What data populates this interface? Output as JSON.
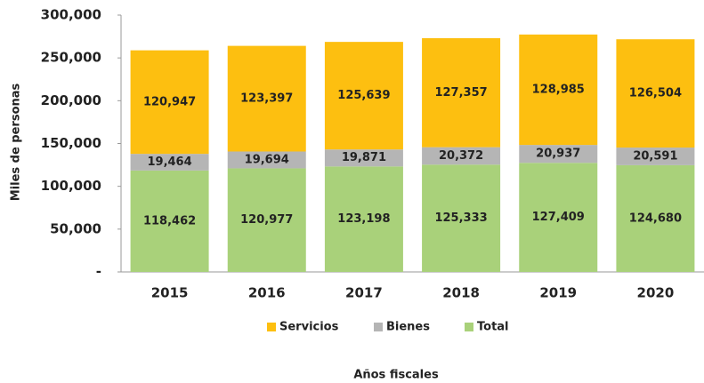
{
  "chart_data": {
    "type": "stacked_bar",
    "y_label": "Miles de personas",
    "x_label": "Años fiscales",
    "categories": [
      "2015",
      "2016",
      "2017",
      "2018",
      "2019",
      "2020"
    ],
    "series": [
      {
        "name": "Servicios",
        "color": "#fdbf10",
        "values": [
          120947,
          123397,
          125639,
          127357,
          128985,
          126504
        ],
        "value_labels": [
          "120,947",
          "123,397",
          "125,639",
          "127,357",
          "128,985",
          "126,504"
        ]
      },
      {
        "name": "Bienes",
        "color": "#b5b5b5",
        "values": [
          19464,
          19694,
          19871,
          20372,
          20937,
          20591
        ],
        "value_labels": [
          "19,464",
          "19,694",
          "19,871",
          "20,372",
          "20,937",
          "20,591"
        ]
      },
      {
        "name": "Total",
        "color": "#a9d17a",
        "values": [
          118462,
          120977,
          123198,
          125333,
          127409,
          124680
        ],
        "value_labels": [
          "118,462",
          "120,977",
          "123,198",
          "125,333",
          "127,409",
          "124,680"
        ]
      }
    ],
    "ylim": [
      0,
      300000
    ],
    "yticks": [
      {
        "value": 0,
        "label": "-"
      },
      {
        "value": 50000,
        "label": "50,000"
      },
      {
        "value": 100000,
        "label": "100,000"
      },
      {
        "value": 150000,
        "label": "150,000"
      },
      {
        "value": 200000,
        "label": "200,000"
      },
      {
        "value": 250000,
        "label": "250,000"
      },
      {
        "value": 300000,
        "label": "300,000"
      }
    ],
    "legend": "bottom"
  }
}
